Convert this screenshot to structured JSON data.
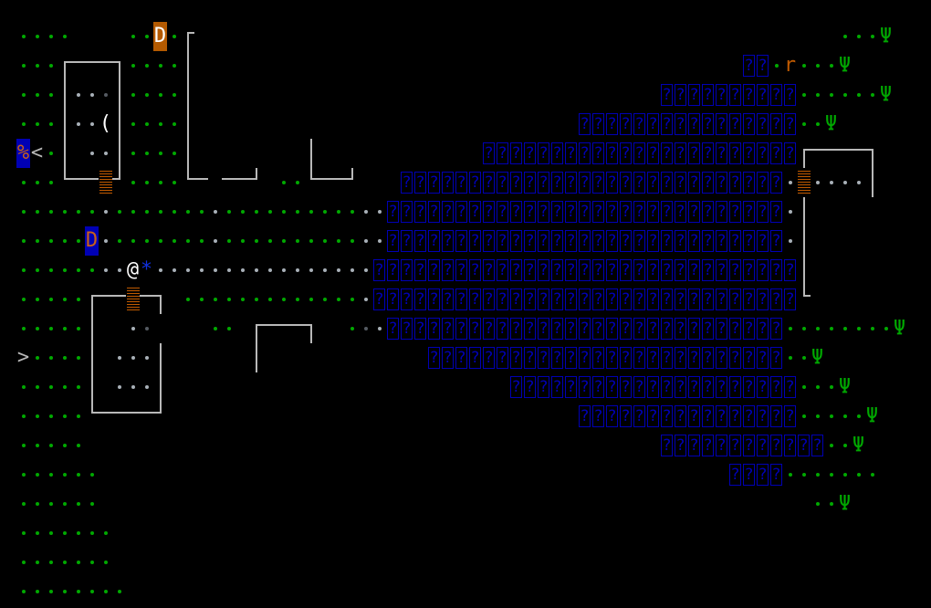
{
  "game": {
    "map_rows": [
      "....    ..A.F                                               ...Y",
      "...F---7....|                                        ??.R...Y",
      "...|,,;|....|                                  ??????????......Y",
      "...|,,P|....|                            ????????????????..Y",
      "C<.| ,,|....|        |            ???????????????????????F----7",
      "...L--#J....L- --J ..L--J   ????????????????????????????,#,,,,|",
      "......,.......,..........,,?????????????????????????????,|",
      ".....B,.......,..........,,?????????????????????????????,|",
      "......,,@*,,,,,,,,,,,,,,,,???????????????????????????????|",
      ".....F--#-7 .............,???????????????????????????????L",
      ".....|  ,;    .. F---7  .;,?????????????????????????????........Y",
      ">....| ,,,|      |            ??????????????????????????..Y",
      ".....| ,,,|                         ?????????????????????...Y",
      ".....L----J                              ????????????????.....Y",
      ".....                                          ????????????..Y",
      "......                                              ????.......",
      "......                                                    ..Y",
      ".......",
      ".......",
      "........"
    ],
    "legend": {
      ".": {
        "kind": "dot",
        "name": "lit-floor",
        "color": "#00a800"
      },
      ",": {
        "kind": "dot",
        "name": "floor",
        "color": "#a8b0b8"
      },
      ";": {
        "kind": "dot",
        "name": "dark-floor",
        "color": "#555b62"
      },
      "?": {
        "kind": "water",
        "name": "water-unknown-glyph",
        "char": "?",
        "color": "#0000b4"
      },
      "Y": {
        "kind": "glyph",
        "name": "tree-icon",
        "char": "Ψ",
        "color": "#00a800"
      },
      "#": {
        "kind": "door",
        "name": "door",
        "color": "#c05a00"
      },
      "-": {
        "kind": "wall",
        "shape": "h",
        "name": "wall-horizontal",
        "color": "#b8b8b8"
      },
      "|": {
        "kind": "wall",
        "shape": "v",
        "name": "wall-vertical",
        "color": "#b8b8b8"
      },
      "F": {
        "kind": "wall",
        "shape": "F",
        "name": "wall-corner-top-left",
        "color": "#b8b8b8"
      },
      "7": {
        "kind": "wall",
        "shape": "7",
        "name": "wall-corner-top-right",
        "color": "#b8b8b8"
      },
      "L": {
        "kind": "wall",
        "shape": "L",
        "name": "wall-corner-bottom-left",
        "color": "#b8b8b8"
      },
      "J": {
        "kind": "wall",
        "shape": "J",
        "name": "wall-corner-bottom-right",
        "color": "#b8b8b8"
      },
      "@": {
        "kind": "glyph",
        "name": "player-avatar",
        "char": "@",
        "color": "#ffffff"
      },
      "*": {
        "kind": "glyph",
        "name": "gem-rock-item",
        "char": "*",
        "color": "#1030e0"
      },
      "A": {
        "kind": "glyph",
        "name": "monster-dragon-orange",
        "char": "D",
        "color": "#ffffff",
        "bg": "#b45a00"
      },
      "B": {
        "kind": "glyph",
        "name": "monster-dragon-blue",
        "char": "D",
        "color": "#c8601a",
        "bg": "#0000b4"
      },
      "R": {
        "kind": "glyph",
        "name": "monster-rat",
        "char": "r",
        "color": "#c05a00"
      },
      "P": {
        "kind": "glyph",
        "name": "weapon-item",
        "char": "(",
        "color": "#ffffff"
      },
      "C": {
        "kind": "glyph",
        "name": "food-item",
        "char": "%",
        "color": "#c8601a",
        "bg": "#0000b4"
      },
      "<": {
        "kind": "glyph",
        "name": "staircase-up",
        "char": "<",
        "color": "#b8b8b8"
      },
      ">": {
        "kind": "glyph",
        "name": "staircase-down",
        "char": ">",
        "color": "#b8b8b8"
      }
    }
  }
}
